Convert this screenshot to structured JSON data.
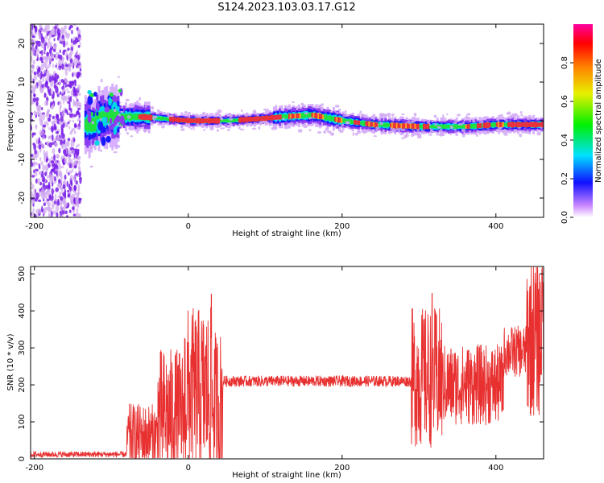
{
  "title": "S124.2023.103.03.17.G12",
  "colors": {
    "snr_line": "#e83030",
    "band_core": "#e8323c",
    "scatter_dense": "#7a20e8",
    "scatter_light": "#d0a8f0",
    "axis": "#000000"
  },
  "chart_data": [
    {
      "type": "heatmap",
      "xlabel": "Height of straight line (km)",
      "ylabel": "Frequency (Hz)",
      "xlim": [
        -205,
        462
      ],
      "ylim": [
        -25,
        25
      ],
      "xticks": [
        -200,
        0,
        200,
        400
      ],
      "yticks": [
        -20,
        -10,
        0,
        10,
        20
      ],
      "colorbar": {
        "label": "Normalized spectral amplitude",
        "range": [
          0,
          1
        ],
        "ticks": [
          "0.0",
          "0.2",
          "0.4",
          "0.6",
          "0.8"
        ],
        "tick_values": [
          0.0,
          0.2,
          0.4,
          0.6,
          0.8
        ],
        "colormap": "rainbow"
      },
      "noise_region": {
        "x": [
          -205,
          -140
        ],
        "y": [
          -25,
          25
        ]
      },
      "band_center_frequency": [
        {
          "x": -120,
          "y": 0.5
        },
        {
          "x": -100,
          "y": 1
        },
        {
          "x": -60,
          "y": 1
        },
        {
          "x": 0,
          "y": 0
        },
        {
          "x": 50,
          "y": 0
        },
        {
          "x": 90,
          "y": 0.5
        },
        {
          "x": 120,
          "y": 1
        },
        {
          "x": 160,
          "y": 1.5
        },
        {
          "x": 200,
          "y": 0
        },
        {
          "x": 240,
          "y": -1
        },
        {
          "x": 300,
          "y": -1.5
        },
        {
          "x": 360,
          "y": -1.5
        },
        {
          "x": 400,
          "y": -1
        },
        {
          "x": 462,
          "y": -1
        }
      ]
    },
    {
      "type": "line",
      "xlabel": "Height of straight line (km)",
      "ylabel": "SNR (10 * v/v)",
      "xlim": [
        -205,
        462
      ],
      "ylim": [
        0,
        520
      ],
      "xticks": [
        -200,
        0,
        200,
        400
      ],
      "yticks": [
        0,
        100,
        200,
        300,
        400,
        500
      ],
      "series": [
        {
          "segments": [
            {
              "x": [
                -205,
                -80
              ],
              "mean": 12,
              "spread": 8
            },
            {
              "x": [
                -80,
                -40
              ],
              "mean": 60,
              "spread": 90
            },
            {
              "x": [
                -40,
                -5
              ],
              "mean": 120,
              "spread": 180
            },
            {
              "x": [
                -5,
                30
              ],
              "mean": 180,
              "spread": 230
            },
            {
              "x": [
                30,
                45
              ],
              "mean": 150,
              "spread": 200
            },
            {
              "x": [
                45,
                290
              ],
              "mean": 210,
              "spread": 15
            },
            {
              "x": [
                290,
                330
              ],
              "mean": 220,
              "spread": 190
            },
            {
              "x": [
                330,
                410
              ],
              "mean": 200,
              "spread": 110
            },
            {
              "x": [
                410,
                440
              ],
              "mean": 290,
              "spread": 70
            },
            {
              "x": [
                440,
                462
              ],
              "mean": 330,
              "spread": 220
            }
          ],
          "peaks": [
            {
              "x": 30,
              "y": 445
            },
            {
              "x": 317,
              "y": 447
            },
            {
              "x": 460,
              "y": 512
            }
          ]
        }
      ]
    }
  ]
}
